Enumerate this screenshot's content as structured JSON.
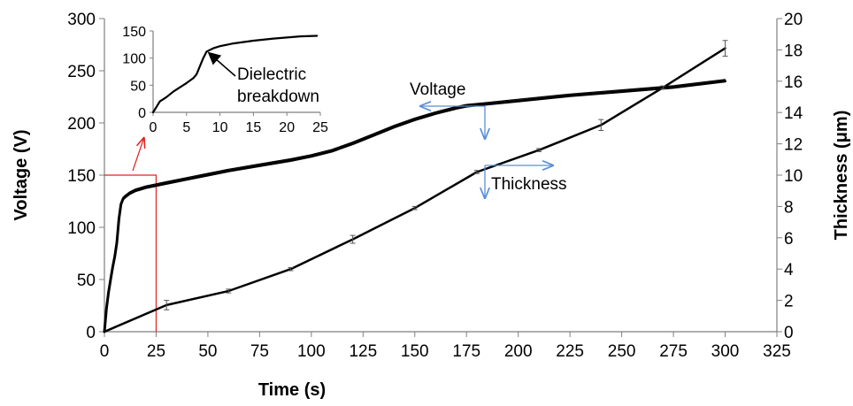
{
  "chart_data": [
    {
      "type": "line",
      "title": "",
      "xlabel": "Time (s)",
      "ylabel": "Voltage (V)",
      "y2label": "Thickness (μm)",
      "xlim": [
        0,
        325
      ],
      "ylim": [
        0,
        300
      ],
      "y2lim": [
        0,
        20
      ],
      "xticks": [
        0,
        25,
        50,
        75,
        100,
        125,
        150,
        175,
        200,
        225,
        250,
        275,
        300,
        325
      ],
      "yticks": [
        0,
        50,
        100,
        150,
        200,
        250,
        300
      ],
      "y2ticks": [
        0,
        2,
        4,
        6,
        8,
        10,
        12,
        14,
        16,
        18,
        20
      ],
      "grid": false,
      "series": [
        {
          "name": "Voltage",
          "axis": "left",
          "x": [
            0,
            1,
            2,
            3,
            4,
            5,
            6,
            7,
            8,
            9,
            10,
            12,
            15,
            20,
            25,
            30,
            40,
            50,
            60,
            75,
            90,
            100,
            110,
            120,
            130,
            140,
            150,
            160,
            170,
            175,
            185,
            200,
            225,
            250,
            275,
            300
          ],
          "y": [
            0,
            22,
            38,
            50,
            62,
            72,
            85,
            108,
            122,
            127,
            129,
            132,
            135,
            138,
            140,
            142,
            146,
            150,
            154,
            159,
            164,
            168,
            173,
            180,
            188,
            196,
            203,
            209,
            214,
            216,
            218,
            221,
            226,
            230,
            234,
            240
          ]
        },
        {
          "name": "Thickness",
          "axis": "right",
          "x": [
            0,
            30,
            60,
            90,
            120,
            150,
            180,
            210,
            240,
            270,
            300
          ],
          "y": [
            0,
            1.7,
            2.6,
            4.0,
            5.9,
            7.9,
            10.2,
            11.6,
            13.2,
            15.6,
            18.1
          ],
          "error": [
            0,
            0.3,
            0.12,
            0.1,
            0.25,
            0.1,
            0.1,
            0.1,
            0.35,
            0.1,
            0.5
          ]
        }
      ],
      "annotations": [
        "Voltage",
        "Thickness"
      ]
    },
    {
      "type": "line",
      "title": "",
      "xlim": [
        0,
        25
      ],
      "ylim": [
        0,
        150
      ],
      "xticks": [
        0,
        5,
        10,
        15,
        20,
        25
      ],
      "yticks": [
        0,
        50,
        100,
        150
      ],
      "series": [
        {
          "x": [
            0,
            0.5,
            1,
            2,
            3,
            4,
            5,
            6,
            6.5,
            7,
            7.5,
            8,
            9,
            10,
            12,
            15,
            18,
            20,
            22,
            24.5
          ],
          "y": [
            0,
            10,
            20,
            28,
            38,
            46,
            54,
            63,
            70,
            85,
            100,
            112,
            118,
            122,
            127,
            132,
            136,
            138,
            140,
            141
          ]
        }
      ],
      "annotation": "Dielectric breakdown"
    }
  ]
}
